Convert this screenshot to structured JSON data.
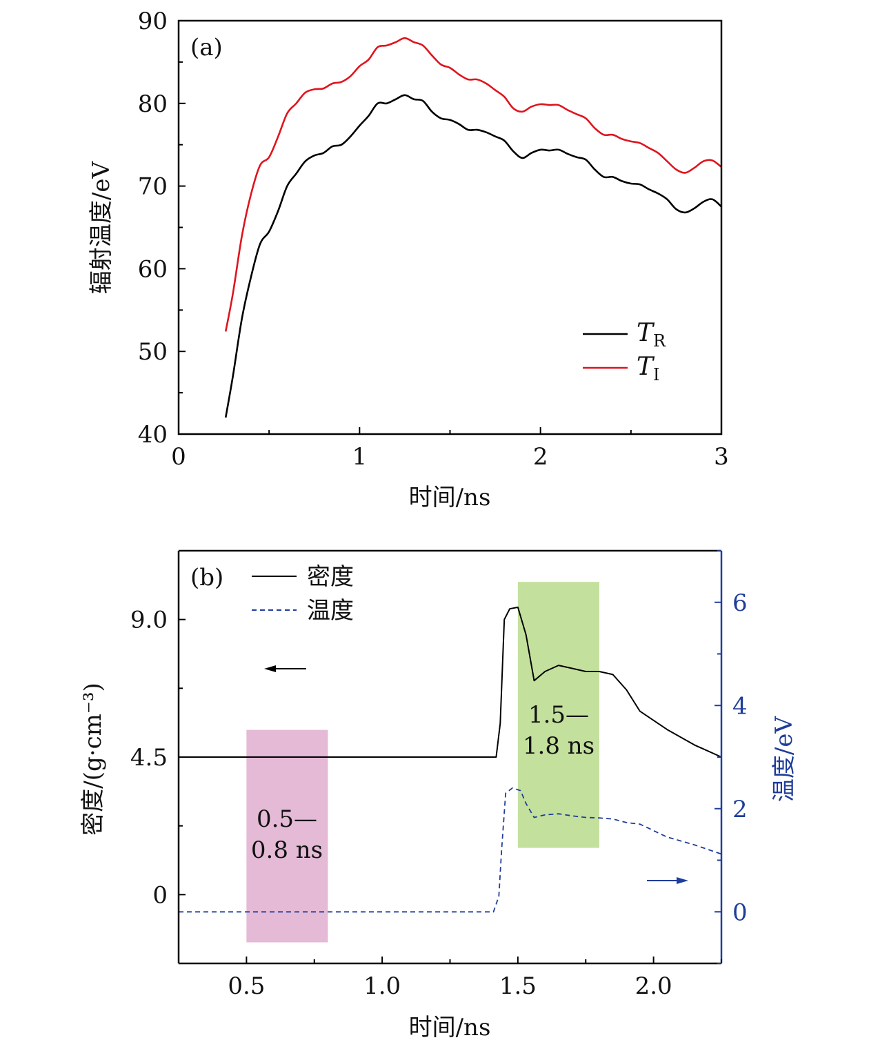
{
  "chart_data": [
    {
      "type": "line",
      "panel_label": "(a)",
      "xlabel": "时间/ns",
      "ylabel": "辐射温度/eV",
      "xlim": [
        0,
        3
      ],
      "ylim": [
        40,
        90
      ],
      "xticks": [
        "0",
        "1",
        "2",
        "3"
      ],
      "yticks": [
        "40",
        "50",
        "60",
        "70",
        "80",
        "90"
      ],
      "grid": false,
      "legend_position": "bottom-right",
      "x": [
        0.26,
        0.3,
        0.35,
        0.4,
        0.45,
        0.5,
        0.55,
        0.6,
        0.65,
        0.7,
        0.75,
        0.8,
        0.85,
        0.9,
        0.95,
        1.0,
        1.05,
        1.1,
        1.15,
        1.2,
        1.25,
        1.3,
        1.35,
        1.4,
        1.45,
        1.5,
        1.55,
        1.6,
        1.65,
        1.7,
        1.75,
        1.8,
        1.85,
        1.9,
        1.95,
        2.0,
        2.05,
        2.1,
        2.15,
        2.2,
        2.25,
        2.3,
        2.35,
        2.4,
        2.45,
        2.5,
        2.55,
        2.6,
        2.65,
        2.7,
        2.75,
        2.8,
        2.85,
        2.9,
        2.95,
        3.0
      ],
      "series": [
        {
          "name": "T",
          "subscript": "R",
          "color": "#000000",
          "values": [
            42,
            47,
            54,
            59,
            63,
            64.5,
            67,
            70,
            71.5,
            73,
            73.7,
            74,
            74.8,
            75,
            76,
            77.3,
            78.5,
            80,
            80,
            80.5,
            81,
            80.5,
            80.3,
            79,
            78.2,
            78,
            77.5,
            76.8,
            76.8,
            76.5,
            76,
            75.5,
            74.2,
            73.4,
            74,
            74.4,
            74.3,
            74.4,
            73.9,
            73.5,
            73.2,
            72,
            71.1,
            71.1,
            70.6,
            70.3,
            70.2,
            69.6,
            69.1,
            68.4,
            67.2,
            66.8,
            67.3,
            68.1,
            68.4,
            67.5
          ]
        },
        {
          "name": "T",
          "subscript": "I",
          "color": "#e0141e",
          "values": [
            52.4,
            57,
            64,
            69,
            72.5,
            73.5,
            76,
            78.8,
            80,
            81.3,
            81.7,
            81.8,
            82.4,
            82.6,
            83.3,
            84.5,
            85.3,
            86.8,
            87,
            87.4,
            87.9,
            87.4,
            87,
            85.8,
            84.7,
            84.3,
            83.5,
            82.9,
            82.9,
            82.4,
            81.6,
            80.8,
            79.4,
            79,
            79.6,
            79.9,
            79.8,
            79.8,
            79.2,
            78.7,
            78.2,
            77,
            76.2,
            76.2,
            75.7,
            75.4,
            75.2,
            74.6,
            74,
            73,
            72,
            71.6,
            72.2,
            73,
            73.1,
            72.3
          ]
        }
      ]
    },
    {
      "type": "line",
      "panel_label": "(b)",
      "xlabel": "时间/ns",
      "ylabel_left": "密度/(g·cm⁻³)",
      "ylabel_right": "温度/eV",
      "xlim": [
        0.25,
        2.25
      ],
      "ylim_left": [
        -2.25,
        11.25
      ],
      "ylim_right": [
        -1,
        7
      ],
      "xticks": [
        "0.5",
        "1.0",
        "1.5",
        "2.0"
      ],
      "yticks_left": [
        "0",
        "4.5",
        "9.0"
      ],
      "yticks_right": [
        "0",
        "2",
        "4",
        "6"
      ],
      "right_axis_color": "#1f3d99",
      "grid": false,
      "legend_position": "top-left",
      "series": [
        {
          "name": "密度",
          "axis": "left",
          "style": "solid",
          "color": "#000000",
          "x": [
            0.25,
            1.42,
            1.435,
            1.45,
            1.47,
            1.5,
            1.53,
            1.56,
            1.6,
            1.65,
            1.7,
            1.75,
            1.8,
            1.85,
            1.9,
            1.95,
            2.05,
            2.15,
            2.25
          ],
          "values": [
            4.5,
            4.5,
            5.6,
            9.0,
            9.35,
            9.4,
            8.5,
            7.0,
            7.3,
            7.5,
            7.4,
            7.3,
            7.3,
            7.2,
            6.7,
            6.0,
            5.4,
            4.9,
            4.5
          ]
        },
        {
          "name": "温度",
          "axis": "right",
          "style": "dashed",
          "color": "#1f3d99",
          "x": [
            0.25,
            1.41,
            1.43,
            1.44,
            1.455,
            1.48,
            1.51,
            1.53,
            1.56,
            1.6,
            1.65,
            1.7,
            1.75,
            1.8,
            1.85,
            1.9,
            1.95,
            2.05,
            2.15,
            2.25
          ],
          "values": [
            0,
            0,
            0.3,
            1.2,
            2.3,
            2.4,
            2.35,
            2.1,
            1.83,
            1.88,
            1.9,
            1.86,
            1.83,
            1.82,
            1.8,
            1.73,
            1.7,
            1.45,
            1.3,
            1.12
          ]
        }
      ],
      "shaded_regions": [
        {
          "x": [
            0.5,
            0.8
          ],
          "y_left": [
            -1.56,
            5.39
          ],
          "color": "#e4bad6",
          "label_line1": "0.5—",
          "label_line2": "0.8 ns"
        },
        {
          "x": [
            1.5,
            1.8
          ],
          "y_left": [
            1.53,
            10.23
          ],
          "color": "#c3e09d",
          "label_line1": "1.5—",
          "label_line2": "1.8 ns"
        }
      ],
      "arrows": [
        {
          "direction": "left",
          "axis": "left",
          "color": "#000000"
        },
        {
          "direction": "right",
          "axis": "right",
          "color": "#1f3d99"
        }
      ]
    }
  ]
}
